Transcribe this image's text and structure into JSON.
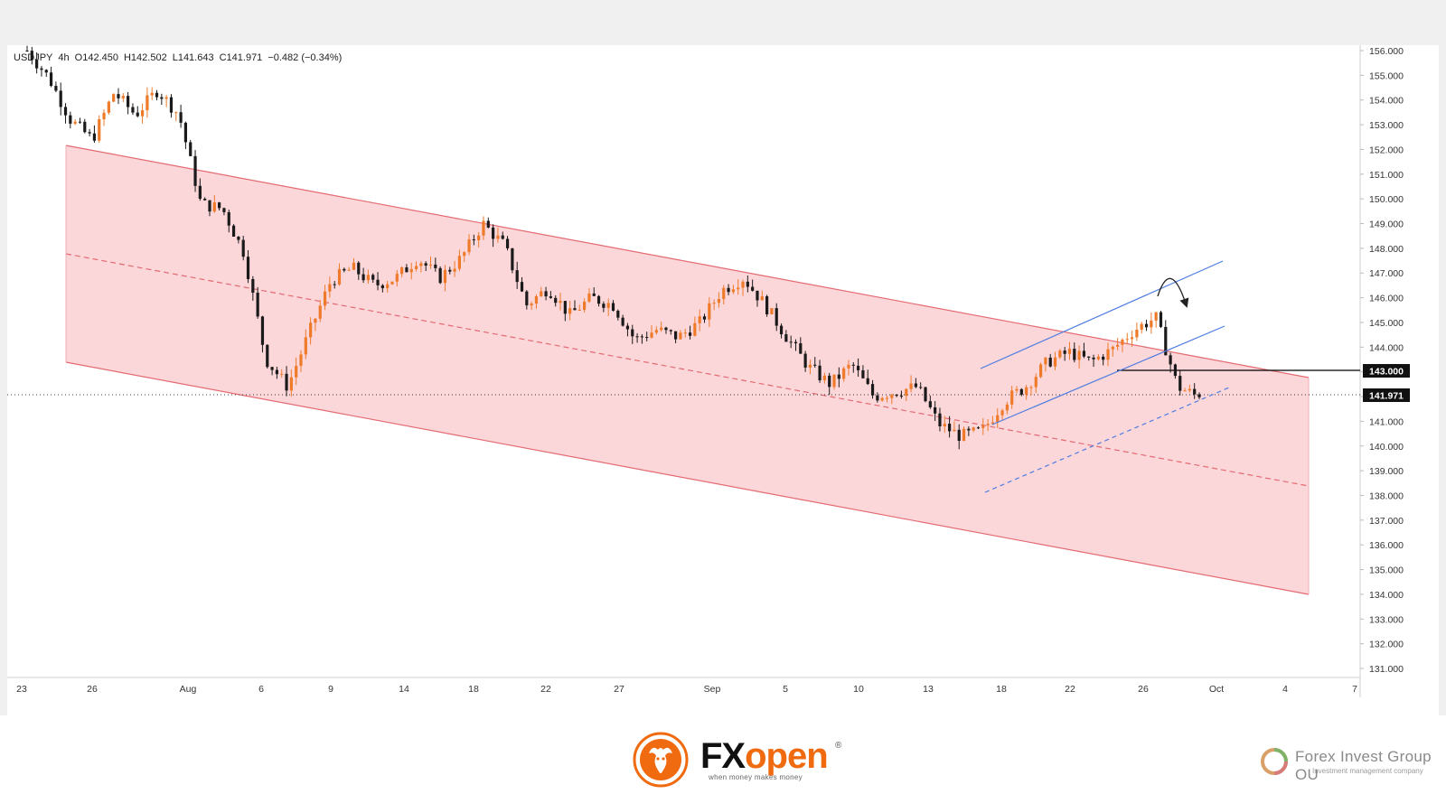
{
  "legend": {
    "symbol": "USDJPY",
    "timeframe": "4h",
    "open": "O142.450",
    "high": "H142.502",
    "low": "L141.643",
    "close": "C141.971",
    "change": "−0.482 (−0.34%)"
  },
  "price_tags": {
    "level": "143.000",
    "last": "141.971"
  },
  "brand": {
    "fx": "FX",
    "open": "open",
    "reg": "®",
    "tagline": "when money makes money",
    "company": "Forex Invest Group OU",
    "company_sub": "Investment management company"
  },
  "colors": {
    "up": "#ef7a2a",
    "down": "#1a1a1a",
    "channel_fill": "#fbd3d6",
    "channel_line": "#e46a72",
    "blue_channel": "#4f7de0",
    "level_line": "#000000"
  },
  "chart_data": {
    "type": "candlestick",
    "symbol": "USDJPY",
    "timeframe": "4h",
    "ohlc": {
      "open": 142.45,
      "high": 142.502,
      "low": 141.643,
      "close": 141.971,
      "change": -0.482,
      "change_pct": -0.34
    },
    "last_price": 141.971,
    "yaxis": {
      "ylim": [
        130.6,
        156.5
      ],
      "ticks": [
        "156.000",
        "155.000",
        "154.000",
        "153.000",
        "152.000",
        "151.000",
        "150.000",
        "149.000",
        "148.000",
        "147.000",
        "146.000",
        "145.000",
        "144.000",
        "143.000",
        "142.000",
        "141.000",
        "140.000",
        "139.000",
        "138.000",
        "137.000",
        "136.000",
        "135.000",
        "134.000",
        "133.000",
        "132.000",
        "131.000"
      ]
    },
    "xaxis": {
      "ticks": [
        "23",
        "26",
        "Aug",
        "6",
        "9",
        "14",
        "18",
        "22",
        "27",
        "Sep",
        "5",
        "10",
        "13",
        "18",
        "22",
        "26",
        "Oct",
        "4",
        "7"
      ]
    },
    "close_path": [
      [
        "Jul 23",
        156.0
      ],
      [
        "Jul 24",
        154.9
      ],
      [
        "Jul 25",
        153.2
      ],
      [
        "Jul 26",
        152.4
      ],
      [
        "Jul 29",
        154.3
      ],
      [
        "Jul 30",
        153.4
      ],
      [
        "Jul 31",
        154.4
      ],
      [
        "Aug 1",
        153.4
      ],
      [
        "Aug 2",
        149.8
      ],
      [
        "Aug 3",
        149.6
      ],
      [
        "Aug 5",
        147.8
      ],
      [
        "Aug 5b",
        143.5
      ],
      [
        "Aug 6",
        142.4
      ],
      [
        "Aug 7",
        144.6
      ],
      [
        "Aug 8",
        146.7
      ],
      [
        "Aug 9",
        147.2
      ],
      [
        "Aug 12",
        146.5
      ],
      [
        "Aug 13",
        146.8
      ],
      [
        "Aug 14",
        147.6
      ],
      [
        "Aug 15",
        146.8
      ],
      [
        "Aug 16",
        147.6
      ],
      [
        "Aug 17",
        149.0
      ],
      [
        "Aug 19",
        148.1
      ],
      [
        "Aug 20",
        145.7
      ],
      [
        "Aug 21",
        146.4
      ],
      [
        "Aug 22",
        145.3
      ],
      [
        "Aug 23",
        146.0
      ],
      [
        "Aug 26",
        145.7
      ],
      [
        "Aug 27",
        144.3
      ],
      [
        "Aug 28",
        144.7
      ],
      [
        "Aug 29",
        144.4
      ],
      [
        "Aug 30",
        145.0
      ],
      [
        "Sep 1",
        146.3
      ],
      [
        "Sep 2",
        146.8
      ],
      [
        "Sep 3",
        145.7
      ],
      [
        "Sep 4",
        144.4
      ],
      [
        "Sep 5",
        143.2
      ],
      [
        "Sep 6",
        142.5
      ],
      [
        "Sep 9",
        143.3
      ],
      [
        "Sep 10",
        142.0
      ],
      [
        "Sep 11",
        142.2
      ],
      [
        "Sep 12",
        142.4
      ],
      [
        "Sep 13",
        140.9
      ],
      [
        "Sep 16",
        140.4
      ],
      [
        "Sep 17",
        140.6
      ],
      [
        "Sep 18",
        141.8
      ],
      [
        "Sep 19",
        142.4
      ],
      [
        "Sep 20",
        143.4
      ],
      [
        "Sep 23",
        143.8
      ],
      [
        "Sep 24",
        143.4
      ],
      [
        "Sep 25",
        143.9
      ],
      [
        "Sep 26",
        144.7
      ],
      [
        "Sep 27",
        145.2
      ],
      [
        "Sep 27b",
        142.4
      ],
      [
        "Sep 30",
        141.971
      ]
    ],
    "annotations": [
      {
        "type": "descending_channel",
        "upper": [
          [
            "Jul 25",
            152.2
          ],
          [
            "Oct 5",
            142.8
          ]
        ],
        "lower": [
          [
            "Jul 25",
            143.6
          ],
          [
            "Oct 5",
            134.0
          ]
        ],
        "median_dashed": true
      },
      {
        "type": "ascending_channel",
        "upper": [
          [
            "Sep 17",
            143.3
          ],
          [
            "Oct 1",
            147.4
          ]
        ],
        "lower": [
          [
            "Sep 17",
            140.7
          ],
          [
            "Oct 1",
            144.8
          ]
        ],
        "lower_dashed": [
          [
            "Sep 17",
            138.1
          ],
          [
            "Oct 1",
            142.3
          ]
        ]
      },
      {
        "type": "horizontal_level",
        "price": 143.0
      },
      {
        "type": "curved_arrow",
        "near": "Sep 27 peak"
      }
    ]
  }
}
